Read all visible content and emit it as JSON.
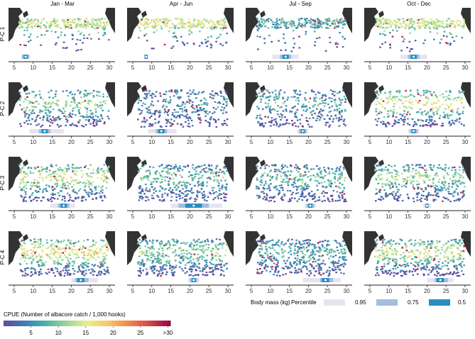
{
  "columns": [
    "Jan - Mar",
    "Apr - Jun",
    "Jul - Sep",
    "Oct - Dec"
  ],
  "rows": [
    "P-C 1",
    "P-C 2",
    "P-C 3",
    "P-C 4"
  ],
  "xaxis_ticks": [
    5,
    10,
    15,
    20,
    25,
    30
  ],
  "xaxis_range": [
    3.5,
    31.5
  ],
  "legend_bodymass": {
    "label": "Body mass (kg)",
    "percentile_label": "Percentile",
    "entries": [
      {
        "label": "0.95",
        "color": "#e7e4f1"
      },
      {
        "label": "0.75",
        "color": "#a3bedf"
      },
      {
        "label": "0.5",
        "color": "#2b8cc2"
      }
    ]
  },
  "colorbar": {
    "title": "CPUE (Number of albacore catch / 1,000 hooks)",
    "ticks": [
      "5",
      "10",
      "15",
      "20",
      "25",
      ">30"
    ],
    "tick_values": [
      5,
      10,
      15,
      20,
      25,
      30
    ],
    "range": [
      0,
      30
    ],
    "colors": [
      "#5c4fa0",
      "#3a7fb8",
      "#4fb3a8",
      "#9bd59b",
      "#e6f08f",
      "#f7c86a",
      "#f08a4a",
      "#d9484c",
      "#9b0940"
    ]
  },
  "chart_data": {
    "type": "heatmap",
    "title": "",
    "xlabel": "Body mass (kg)",
    "description_note": "",
    "panels": [
      {
        "row": "P-C 1",
        "col": "Jan - Mar",
        "median": 8,
        "q75": [
          7,
          9
        ],
        "q95": [
          7,
          9
        ]
      },
      {
        "row": "P-C 1",
        "col": "Apr - Jun",
        "median": 8.5,
        "q75": [
          8,
          9
        ],
        "q95": [
          8,
          9
        ]
      },
      {
        "row": "P-C 1",
        "col": "Jul - Sep",
        "median": 14,
        "q75": [
          12.5,
          15.5
        ],
        "q95": [
          10.5,
          17.5
        ]
      },
      {
        "row": "P-C 1",
        "col": "Oct - Dec",
        "median": 16.5,
        "q75": [
          15,
          18
        ],
        "q95": [
          13,
          20
        ]
      },
      {
        "row": "P-C 2",
        "col": "Jan - Mar",
        "median": 13,
        "q75": [
          11.5,
          14.5
        ],
        "q95": [
          9,
          18
        ]
      },
      {
        "row": "P-C 2",
        "col": "Apr - Jun",
        "median": 12.5,
        "q75": [
          11,
          14
        ],
        "q95": [
          9,
          16.5
        ]
      },
      {
        "row": "P-C 2",
        "col": "Jul - Sep",
        "median": 18.5,
        "q75": [
          17.5,
          19.5
        ],
        "q95": [
          17,
          20
        ]
      },
      {
        "row": "P-C 2",
        "col": "Oct - Dec",
        "median": 16.5,
        "q75": [
          15.5,
          17.5
        ],
        "q95": [
          15,
          18
        ]
      },
      {
        "row": "P-C 3",
        "col": "Jan - Mar",
        "median": 18,
        "q75": [
          16.5,
          19.5
        ],
        "q95": [
          14.5,
          21
        ]
      },
      {
        "row": "P-C 3",
        "col": "Apr - Jun",
        "median": 21,
        "q75": [
          17,
          25
        ],
        "q95": [
          15,
          28.5
        ]
      },
      {
        "row": "P-C 3",
        "col": "Jul - Sep",
        "median": 20.5,
        "q75": [
          19.5,
          21.5
        ],
        "q95": [
          19,
          22
        ]
      },
      {
        "row": "P-C 3",
        "col": "Oct - Dec",
        "median": 20,
        "q75": [
          19.5,
          20.5
        ],
        "q95": [
          19,
          21
        ]
      },
      {
        "row": "P-C 4",
        "col": "Jan - Mar",
        "median": 22.5,
        "q75": [
          21,
          24.5
        ],
        "q95": [
          20,
          27
        ]
      },
      {
        "row": "P-C 4",
        "col": "Apr - Jun",
        "median": 21,
        "q75": [
          20,
          22
        ],
        "q95": [
          19.5,
          22.5
        ]
      },
      {
        "row": "P-C 4",
        "col": "Jul - Sep",
        "median": 24.5,
        "q75": [
          23,
          26.5
        ],
        "q95": [
          18.5,
          28.5
        ]
      },
      {
        "row": "P-C 4",
        "col": "Oct - Dec",
        "median": 23.5,
        "q75": [
          22,
          25.5
        ],
        "q95": [
          20,
          27
        ]
      }
    ]
  }
}
